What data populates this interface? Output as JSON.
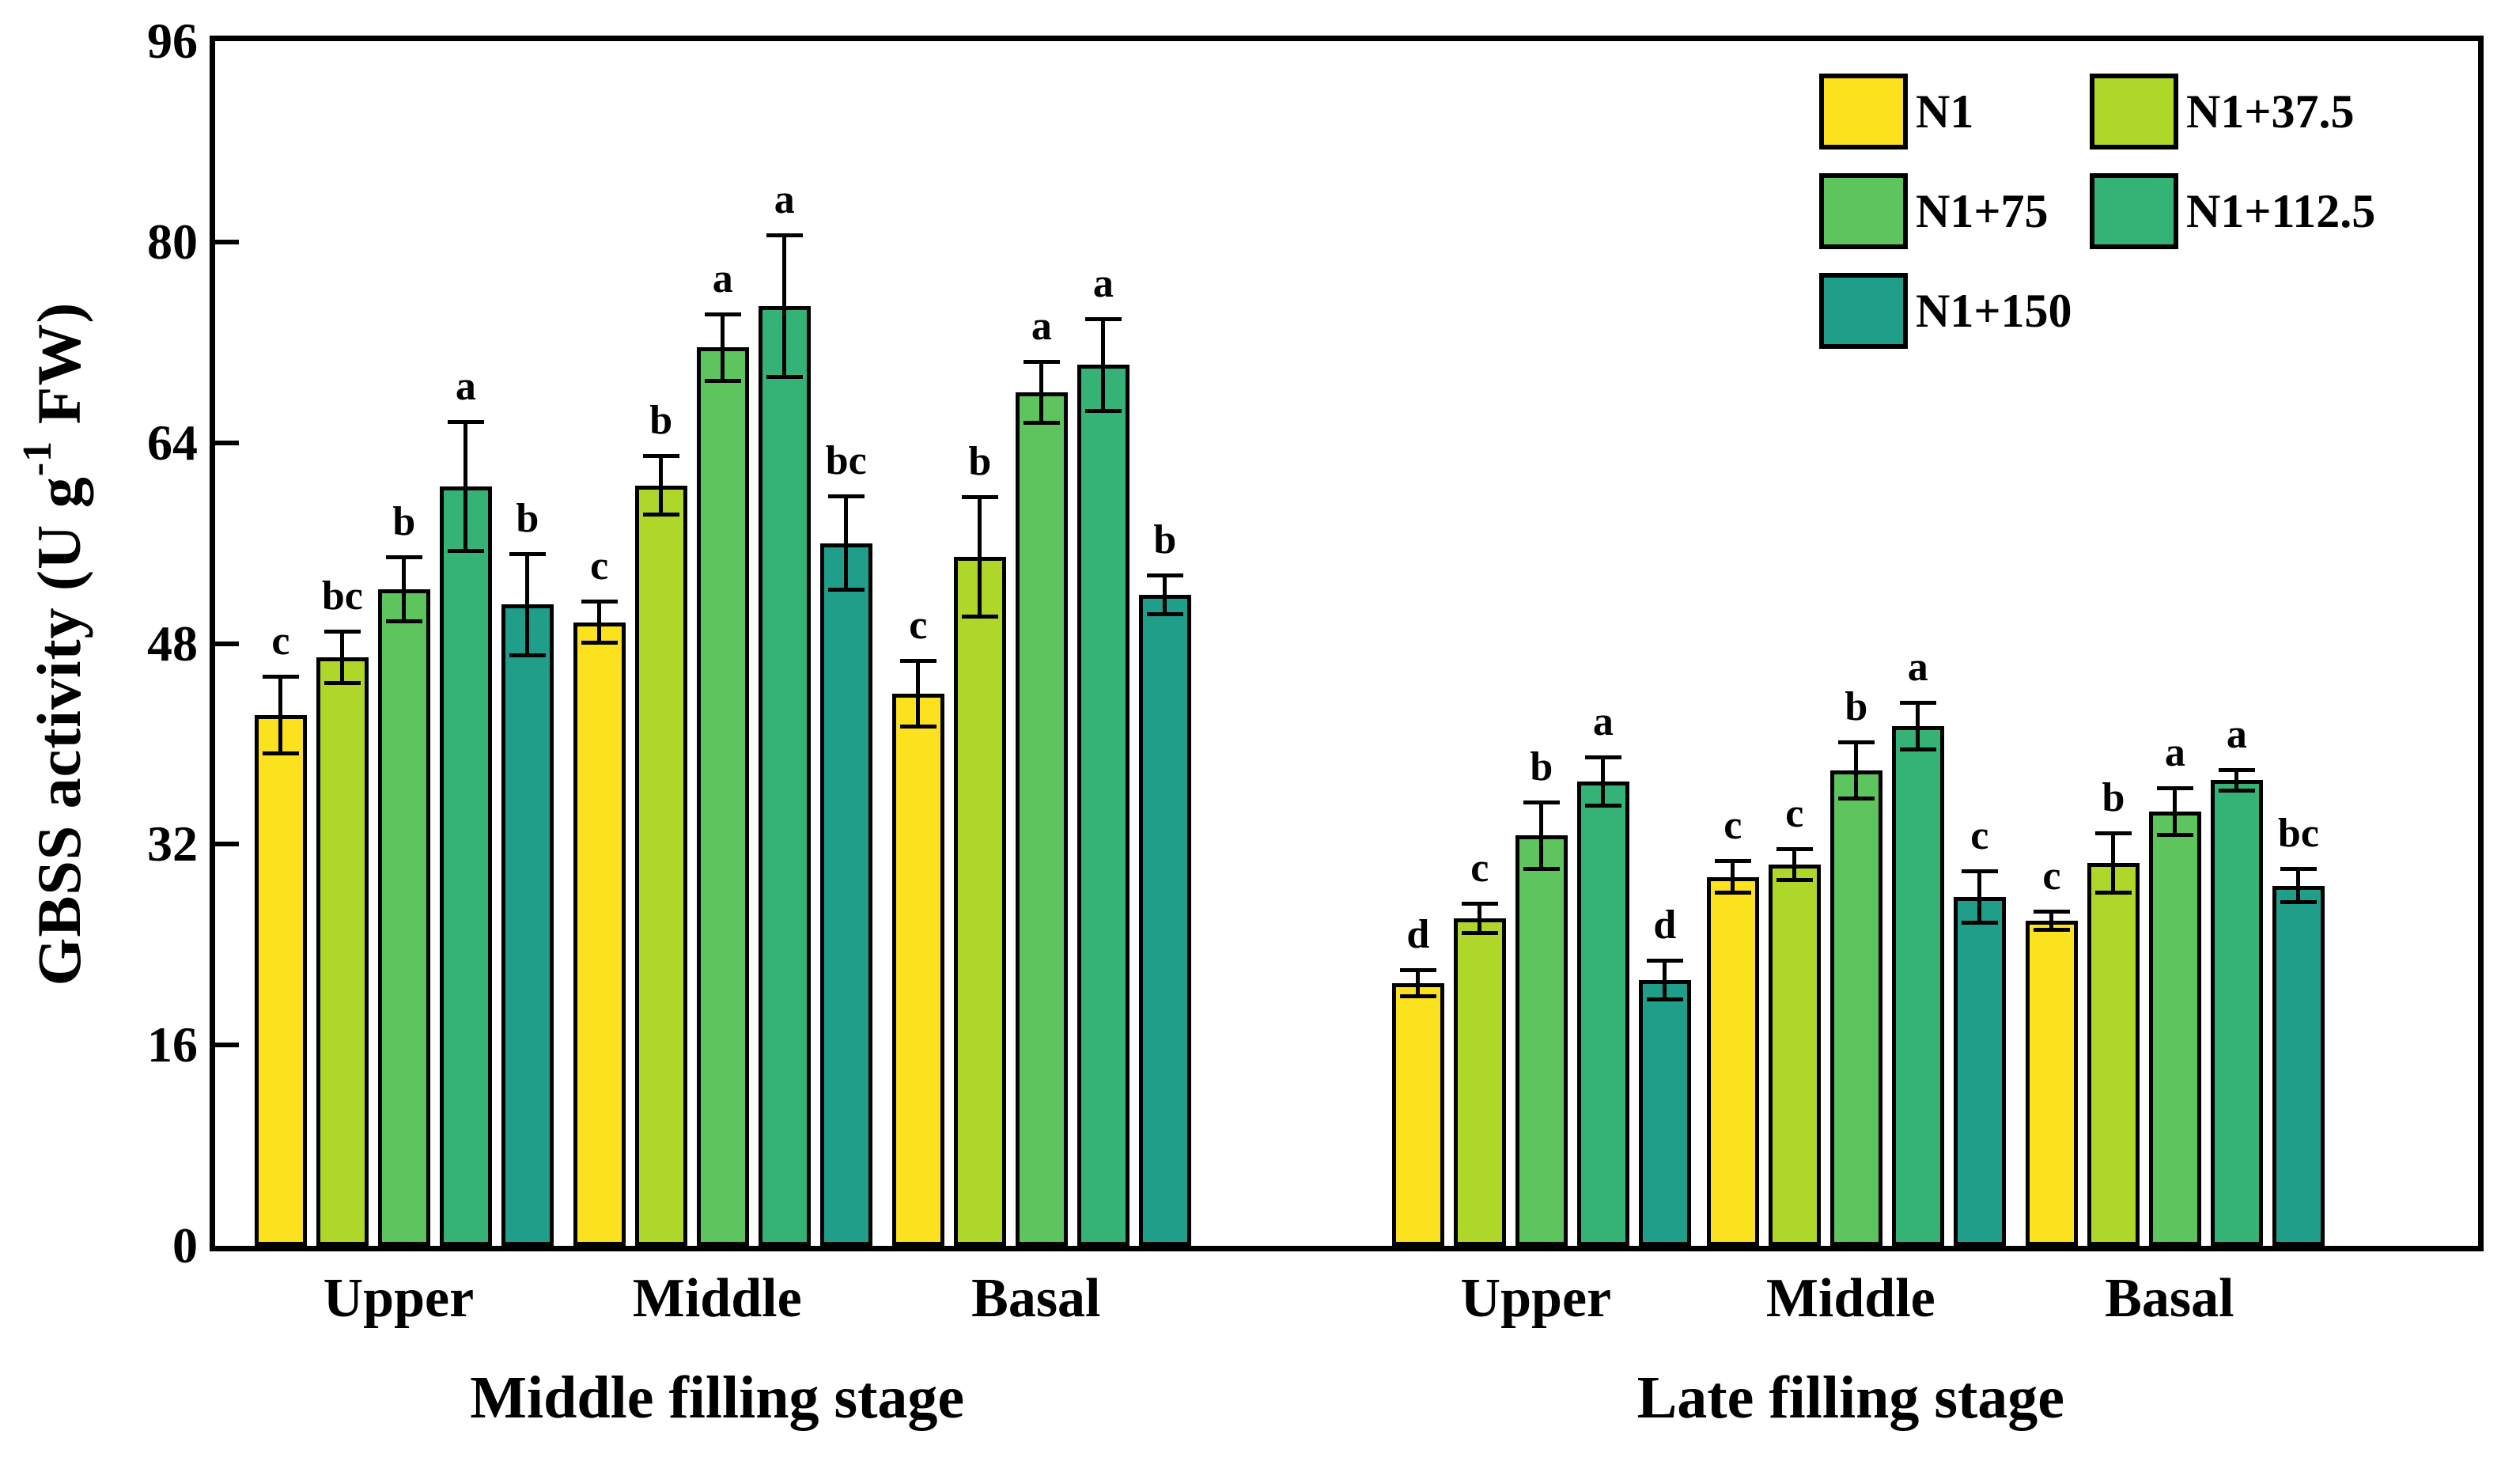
{
  "chart_data": {
    "type": "bar",
    "title": "",
    "ylabel": {
      "pre": "GBSS activity (U g",
      "sup": "-1",
      "post": " FW)"
    },
    "ylim": [
      0,
      96
    ],
    "yticks": [
      0,
      16,
      32,
      48,
      64,
      80,
      96
    ],
    "grid": false,
    "legend_position": "top-right-inside",
    "series_names": [
      "N1",
      "N1+37.5",
      "N1+75",
      "N1+112.5",
      "N1+150"
    ],
    "series_colors": {
      "N1": "#FCE11E",
      "N1+37.5": "#AFD72A",
      "N1+75": "#5DC45E",
      "N1+112.5": "#35B377",
      "N1+150": "#1F9E89"
    },
    "stages": [
      {
        "label": "Middle filling stage",
        "groups": [
          {
            "label": "Upper",
            "bars": [
              {
                "treatment": "N1",
                "value": 42.3,
                "error": 3.2,
                "letter": "c"
              },
              {
                "treatment": "N1+37.5",
                "value": 46.9,
                "error": 2.2,
                "letter": "bc"
              },
              {
                "treatment": "N1+75",
                "value": 52.3,
                "error": 2.7,
                "letter": "b"
              },
              {
                "treatment": "N1+112.5",
                "value": 60.5,
                "error": 5.3,
                "letter": "a"
              },
              {
                "treatment": "N1+150",
                "value": 51.1,
                "error": 4.2,
                "letter": "b"
              }
            ]
          },
          {
            "label": "Middle",
            "bars": [
              {
                "treatment": "N1",
                "value": 49.7,
                "error": 1.8,
                "letter": "c"
              },
              {
                "treatment": "N1+37.5",
                "value": 60.6,
                "error": 2.5,
                "letter": "b"
              },
              {
                "treatment": "N1+75",
                "value": 71.6,
                "error": 2.8,
                "letter": "a"
              },
              {
                "treatment": "N1+112.5",
                "value": 74.9,
                "error": 5.8,
                "letter": "a"
              },
              {
                "treatment": "N1+150",
                "value": 56.0,
                "error": 3.9,
                "letter": "bc"
              }
            ]
          },
          {
            "label": "Basal",
            "bars": [
              {
                "treatment": "N1",
                "value": 44.0,
                "error": 2.8,
                "letter": "c"
              },
              {
                "treatment": "N1+37.5",
                "value": 54.9,
                "error": 4.9,
                "letter": "b"
              },
              {
                "treatment": "N1+75",
                "value": 68.0,
                "error": 2.6,
                "letter": "a"
              },
              {
                "treatment": "N1+112.5",
                "value": 70.2,
                "error": 3.8,
                "letter": "a"
              },
              {
                "treatment": "N1+150",
                "value": 51.9,
                "error": 1.7,
                "letter": "b"
              }
            ]
          }
        ]
      },
      {
        "label": "Late filling stage",
        "groups": [
          {
            "label": "Upper",
            "bars": [
              {
                "treatment": "N1",
                "value": 20.9,
                "error": 1.2,
                "letter": "d"
              },
              {
                "treatment": "N1+37.5",
                "value": 26.1,
                "error": 1.3,
                "letter": "c"
              },
              {
                "treatment": "N1+75",
                "value": 32.7,
                "error": 2.8,
                "letter": "b"
              },
              {
                "treatment": "N1+112.5",
                "value": 37.0,
                "error": 2.1,
                "letter": "a"
              },
              {
                "treatment": "N1+150",
                "value": 21.2,
                "error": 1.7,
                "letter": "d"
              }
            ]
          },
          {
            "label": "Middle",
            "bars": [
              {
                "treatment": "N1",
                "value": 29.4,
                "error": 1.4,
                "letter": "c"
              },
              {
                "treatment": "N1+37.5",
                "value": 30.4,
                "error": 1.4,
                "letter": "c"
              },
              {
                "treatment": "N1+75",
                "value": 37.9,
                "error": 2.4,
                "letter": "b"
              },
              {
                "treatment": "N1+112.5",
                "value": 41.4,
                "error": 2.0,
                "letter": "a"
              },
              {
                "treatment": "N1+150",
                "value": 27.8,
                "error": 2.2,
                "letter": "c"
              }
            ]
          },
          {
            "label": "Basal",
            "bars": [
              {
                "treatment": "N1",
                "value": 25.9,
                "error": 0.9,
                "letter": "c"
              },
              {
                "treatment": "N1+37.5",
                "value": 30.5,
                "error": 2.5,
                "letter": "b"
              },
              {
                "treatment": "N1+75",
                "value": 34.6,
                "error": 2.0,
                "letter": "a"
              },
              {
                "treatment": "N1+112.5",
                "value": 37.1,
                "error": 1.0,
                "letter": "a"
              },
              {
                "treatment": "N1+150",
                "value": 28.7,
                "error": 1.5,
                "letter": "bc"
              }
            ]
          }
        ]
      }
    ]
  },
  "legend": {
    "items": [
      {
        "label": "N1",
        "color": "#FCE11E"
      },
      {
        "label": "N1+37.5",
        "color": "#AFD72A"
      },
      {
        "label": "N1+75",
        "color": "#5DC45E"
      },
      {
        "label": "N1+112.5",
        "color": "#35B377"
      },
      {
        "label": "N1+150",
        "color": "#1F9E89"
      }
    ]
  }
}
